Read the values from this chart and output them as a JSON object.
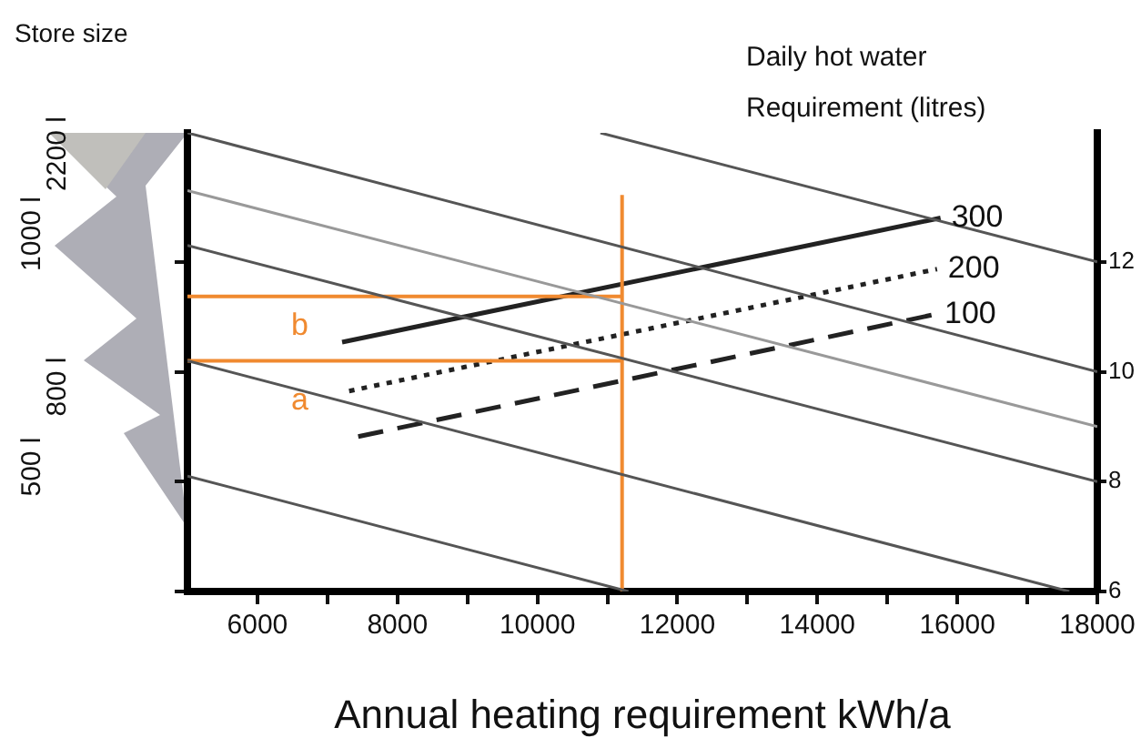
{
  "chart_data": {
    "type": "line",
    "xlabel": "Annual heating requirement kWh/a",
    "ylabel": "Store size",
    "legend_title": "Daily hot water\nRequirement (litres)",
    "xlim": [
      5000,
      18000
    ],
    "xticks": [
      6000,
      {
        "value": 7000,
        "label": null
      },
      8000,
      {
        "value": 9000,
        "label": null
      },
      10000,
      {
        "value": 11000,
        "label": null
      },
      12000,
      {
        "value": 13000,
        "label": null
      },
      14000,
      {
        "value": 15000,
        "label": null
      },
      16000,
      {
        "value": 17000,
        "label": null
      },
      18000
    ],
    "y2lim": [
      6,
      14.35
    ],
    "y2ticks": [
      6,
      8,
      10,
      12
    ],
    "grid": false,
    "legend": false,
    "annotations": [
      "2200 l",
      "1000 l",
      "800 l",
      "500 l",
      "b",
      "a"
    ],
    "series": [
      {
        "type": "line",
        "axis": "y2",
        "color": "#555555",
        "line_style": "solid",
        "x": [
          5000,
          18000
        ],
        "values": [
          14.35,
          10
        ]
      },
      {
        "type": "line",
        "axis": "y2",
        "color": "#999999",
        "line_style": "solid",
        "x": [
          5000,
          18000
        ],
        "values": [
          13.3,
          9
        ]
      },
      {
        "type": "line",
        "axis": "y2",
        "color": "#555555",
        "line_style": "solid",
        "x": [
          5000,
          18000
        ],
        "values": [
          12.3,
          8
        ]
      },
      {
        "type": "line",
        "axis": "y2",
        "color": "#555555",
        "line_style": "solid",
        "x": [
          5000,
          17600
        ],
        "values": [
          10.2,
          6
        ]
      },
      {
        "type": "line",
        "axis": "y2",
        "color": "#555555",
        "line_style": "solid",
        "x": [
          5000,
          11300
        ],
        "values": [
          8.1,
          6
        ]
      },
      {
        "type": "line",
        "axis": "y2",
        "color": "#555555",
        "line_style": "solid",
        "x": [
          10900,
          18000
        ],
        "values": [
          14.35,
          12
        ]
      },
      {
        "type": "line",
        "axis": "y2",
        "color": "#f08a30",
        "line_style": "solid",
        "x": [
          11210,
          11210
        ],
        "values": [
          6,
          13.22
        ]
      },
      {
        "type": "line",
        "axis": "y2",
        "color": "#f08a30",
        "line_style": "solid",
        "x": [
          5000,
          11210
        ],
        "values": [
          11.37,
          11.37
        ]
      },
      {
        "type": "line",
        "axis": "y2",
        "color": "#f08a30",
        "line_style": "solid",
        "x": [
          5000,
          11210
        ],
        "values": [
          10.2,
          10.2
        ]
      },
      {
        "type": "line",
        "axis": "y2",
        "name": "300",
        "color": "#222222",
        "line_style": "solid",
        "x": [
          7210,
          15760
        ],
        "values": [
          10.54,
          12.8
        ]
      },
      {
        "type": "line",
        "axis": "y2",
        "name": "200",
        "color": "#222222",
        "line_style": "dotted",
        "x": [
          7310,
          15710
        ],
        "values": [
          9.65,
          11.87
        ]
      },
      {
        "type": "line",
        "axis": "y2",
        "name": "100",
        "color": "#222222",
        "line_style": "dashed",
        "x": [
          7440,
          15660
        ],
        "values": [
          8.82,
          11.04
        ]
      }
    ]
  }
}
